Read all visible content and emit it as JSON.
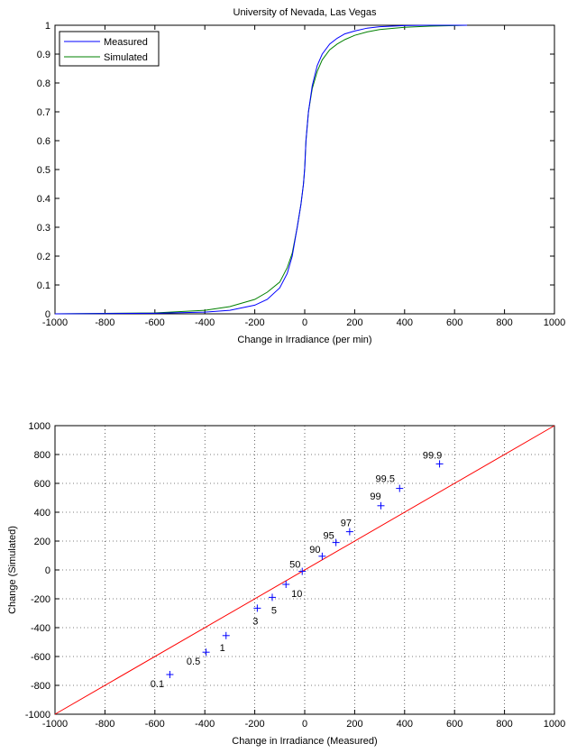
{
  "chart_data": [
    {
      "type": "line",
      "title": "University of Nevada, Las Vegas",
      "xlabel": "Change in Irradiance (per min)",
      "ylabel": "",
      "xlim": [
        -1000,
        1000
      ],
      "ylim": [
        0,
        1
      ],
      "xticks": [
        "-1000",
        "-800",
        "-600",
        "-400",
        "-200",
        "0",
        "200",
        "400",
        "600",
        "800",
        "1000"
      ],
      "yticks": [
        "0",
        "0.1",
        "0.2",
        "0.3",
        "0.4",
        "0.5",
        "0.6",
        "0.7",
        "0.8",
        "0.9",
        "1"
      ],
      "legend": "top-left",
      "grid": false,
      "series": [
        {
          "name": "Measured",
          "color": "#0000ff",
          "x": [
            -1000,
            -600,
            -400,
            -300,
            -200,
            -150,
            -100,
            -70,
            -50,
            -30,
            -15,
            -5,
            0,
            5,
            15,
            30,
            50,
            70,
            100,
            130,
            160,
            200,
            250,
            300,
            400,
            500,
            650
          ],
          "y": [
            0,
            0.002,
            0.006,
            0.012,
            0.03,
            0.05,
            0.09,
            0.14,
            0.2,
            0.3,
            0.38,
            0.45,
            0.505,
            0.6,
            0.7,
            0.79,
            0.86,
            0.9,
            0.935,
            0.955,
            0.97,
            0.98,
            0.99,
            0.995,
            0.999,
            1.0,
            1.0
          ]
        },
        {
          "name": "Simulated",
          "color": "#008000",
          "x": [
            -1000,
            -600,
            -400,
            -300,
            -200,
            -150,
            -100,
            -70,
            -50,
            -30,
            -15,
            -5,
            0,
            5,
            15,
            30,
            50,
            70,
            100,
            130,
            160,
            200,
            250,
            300,
            400,
            500,
            650
          ],
          "y": [
            0,
            0.003,
            0.012,
            0.025,
            0.05,
            0.075,
            0.11,
            0.16,
            0.21,
            0.3,
            0.38,
            0.45,
            0.505,
            0.6,
            0.7,
            0.78,
            0.84,
            0.88,
            0.915,
            0.935,
            0.95,
            0.965,
            0.977,
            0.985,
            0.993,
            0.997,
            1.0
          ]
        }
      ]
    },
    {
      "type": "scatter",
      "title": "",
      "xlabel": "Change in Irradiance (Measured)",
      "ylabel": "Change (Simulated)",
      "xlim": [
        -1000,
        1000
      ],
      "ylim": [
        -1000,
        1000
      ],
      "xticks": [
        "-1000",
        "-800",
        "-600",
        "-400",
        "-200",
        "0",
        "200",
        "400",
        "600",
        "800",
        "1000"
      ],
      "yticks": [
        "-1000",
        "-800",
        "-600",
        "-400",
        "-200",
        "0",
        "200",
        "400",
        "600",
        "800",
        "1000"
      ],
      "grid": true,
      "reference_line": {
        "x": [
          -1000,
          1000
        ],
        "y": [
          -1000,
          1000
        ],
        "color": "#ff0000"
      },
      "marker_color": "#0000ff",
      "points": [
        {
          "label": "0.1",
          "x": -540,
          "y": -725
        },
        {
          "label": "0.5",
          "x": -395,
          "y": -570
        },
        {
          "label": "1",
          "x": -315,
          "y": -455
        },
        {
          "label": "3",
          "x": -190,
          "y": -265
        },
        {
          "label": "5",
          "x": -130,
          "y": -190
        },
        {
          "label": "10",
          "x": -75,
          "y": -100
        },
        {
          "label": "50",
          "x": -10,
          "y": -10
        },
        {
          "label": "90",
          "x": 70,
          "y": 95
        },
        {
          "label": "95",
          "x": 125,
          "y": 190
        },
        {
          "label": "97",
          "x": 180,
          "y": 265
        },
        {
          "label": "99",
          "x": 305,
          "y": 445
        },
        {
          "label": "99.5",
          "x": 380,
          "y": 565
        },
        {
          "label": "99.9",
          "x": 540,
          "y": 735
        }
      ]
    }
  ]
}
